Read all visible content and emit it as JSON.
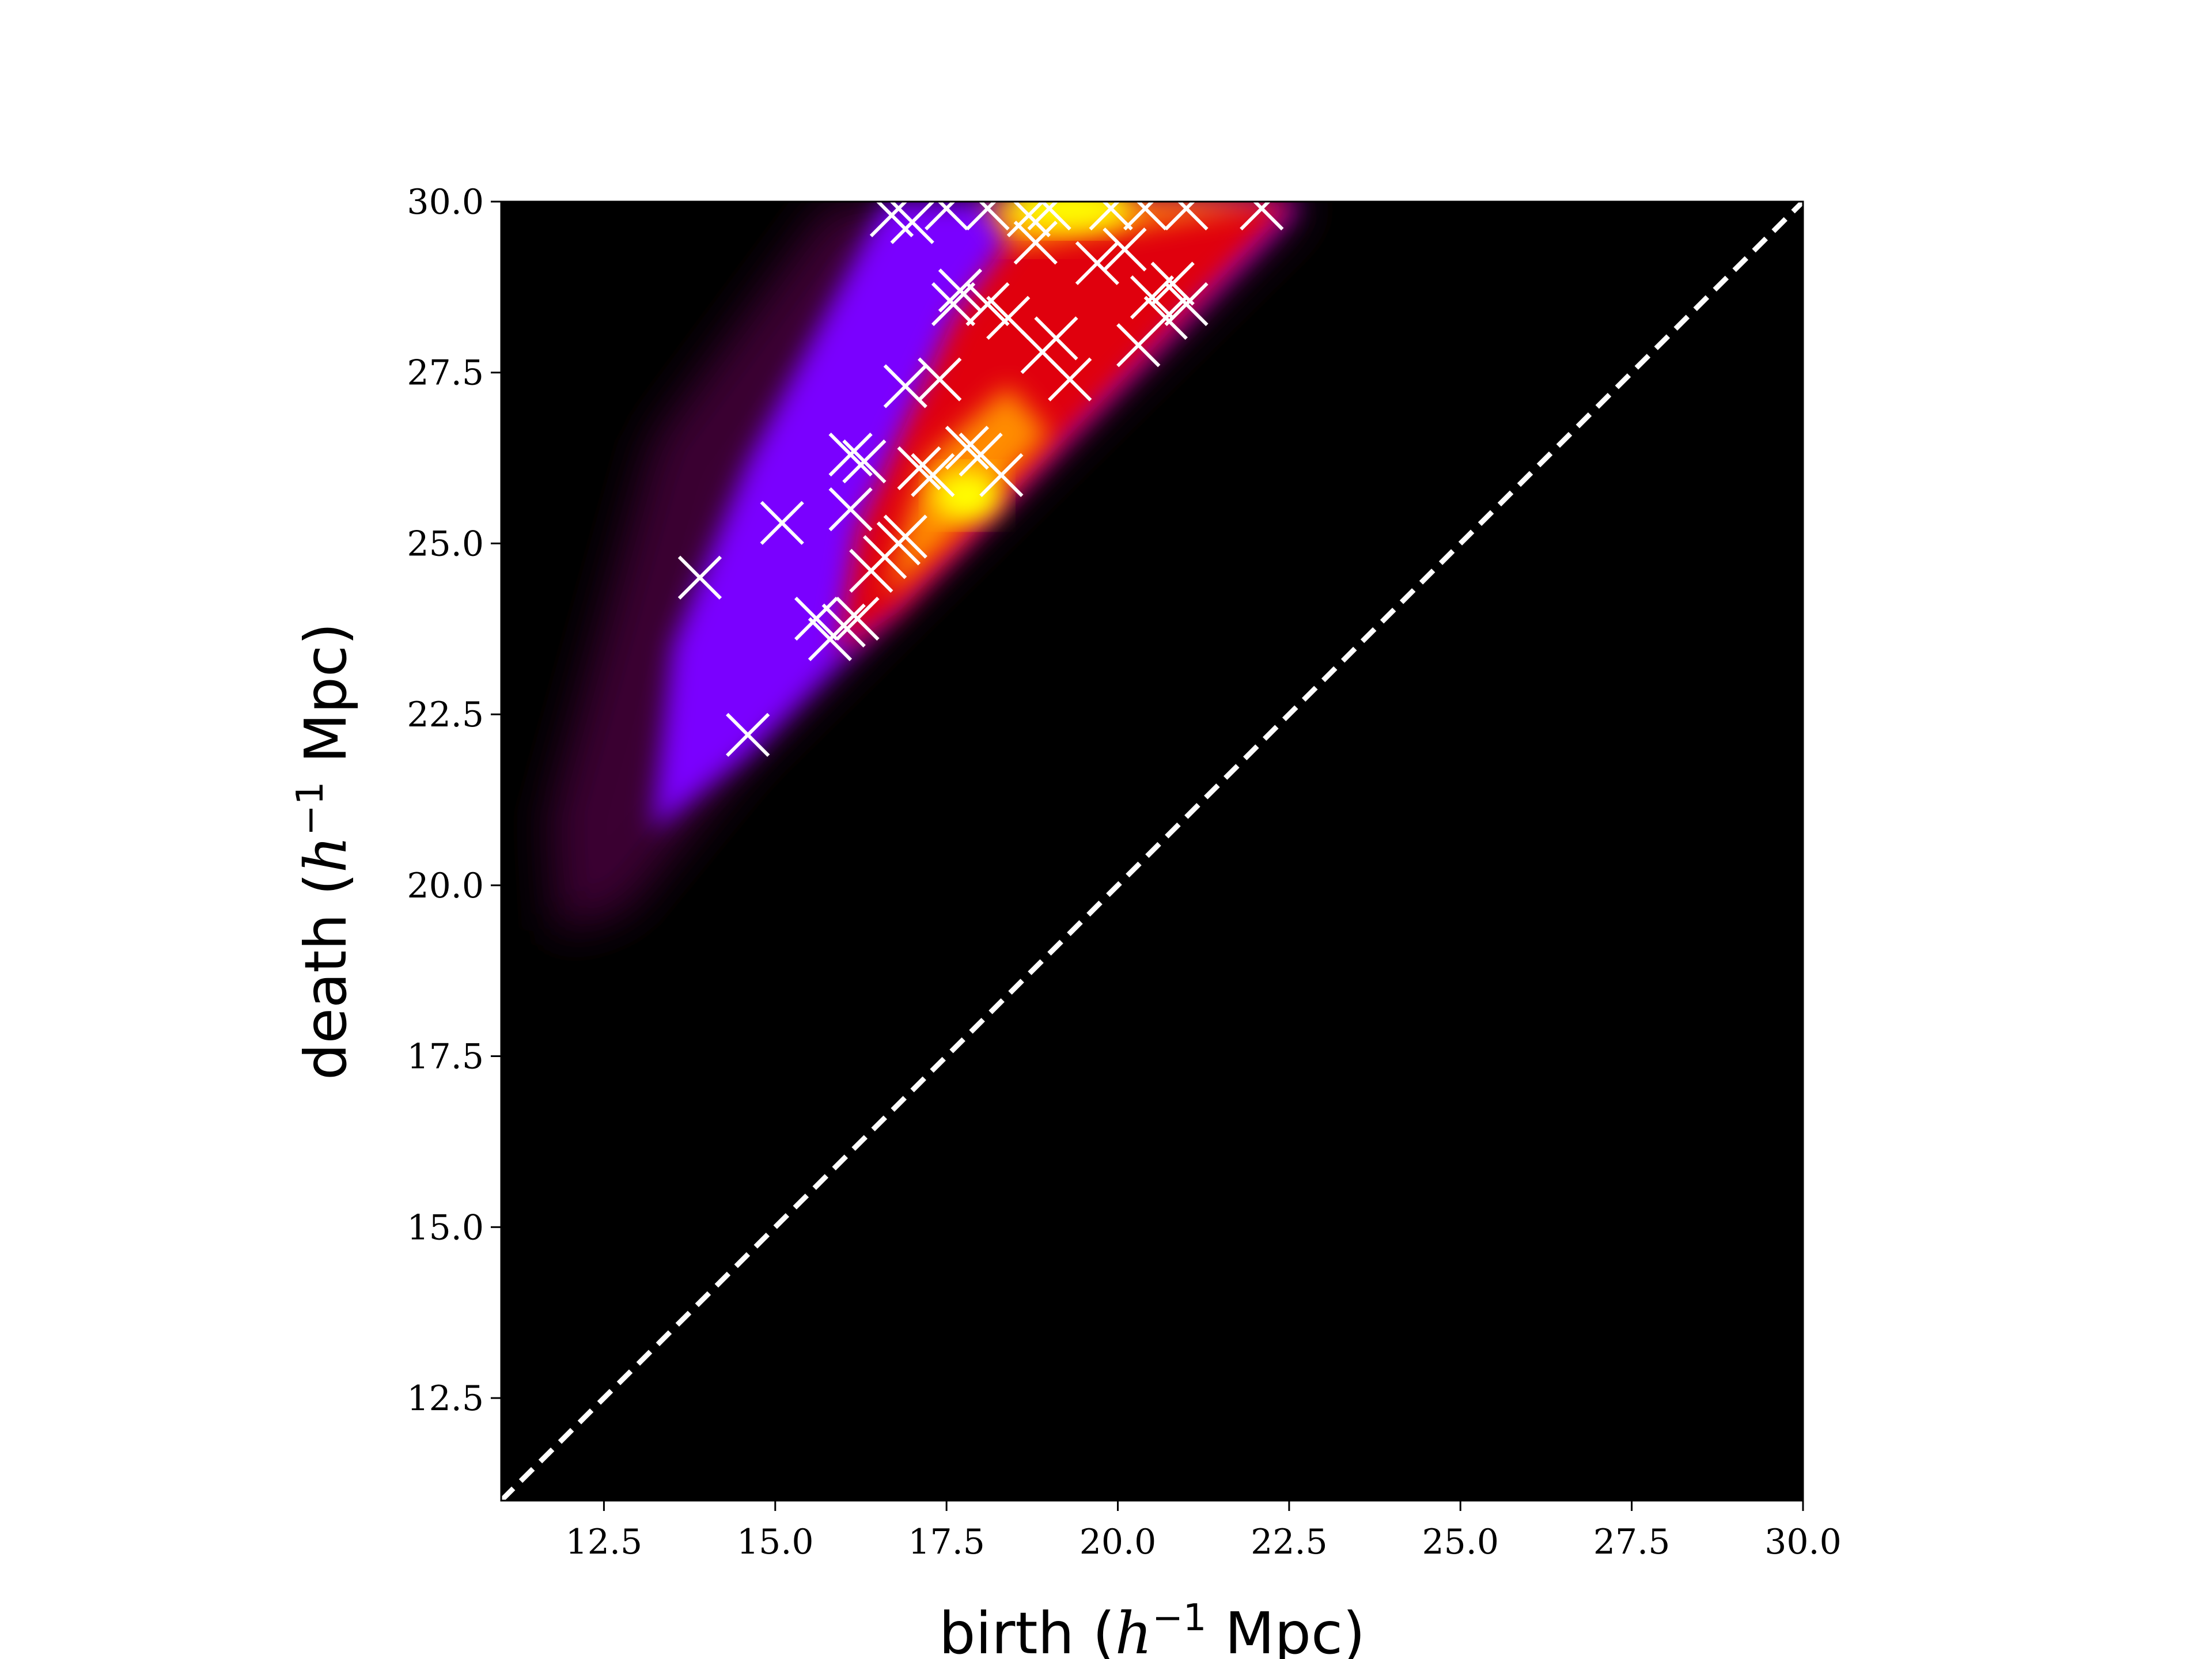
{
  "chart_data": {
    "type": "scatter",
    "background": "density heatmap (gnuplot-like colormap: black, purple, red, orange, yellow)",
    "xlabel": {
      "prefix": "birth (",
      "italic": "h",
      "sup": "−1",
      "suffix": " Mpc)"
    },
    "ylabel": {
      "prefix": "death (",
      "italic": "h",
      "sup": "−1",
      "suffix": " Mpc)"
    },
    "xlim": [
      11.0,
      30.0
    ],
    "ylim": [
      11.0,
      30.0
    ],
    "xticks": [
      "12.5",
      "15.0",
      "17.5",
      "20.0",
      "22.5",
      "25.0",
      "27.5",
      "30.0"
    ],
    "yticks": [
      "12.5",
      "15.0",
      "17.5",
      "20.0",
      "22.5",
      "25.0",
      "27.5",
      "30.0"
    ],
    "xtick_values": [
      12.5,
      15.0,
      17.5,
      20.0,
      22.5,
      25.0,
      27.5,
      30.0
    ],
    "ytick_values": [
      12.5,
      15.0,
      17.5,
      20.0,
      22.5,
      25.0,
      27.5,
      30.0
    ],
    "diagonal": {
      "style": "dashed",
      "color": "#ffffff",
      "from": [
        11.0,
        11.0
      ],
      "to": [
        30.0,
        30.0
      ]
    },
    "marker": {
      "shape": "x",
      "color": "#ffffff"
    },
    "colors": {
      "purple": "#7a00ff",
      "red": "#e0000a",
      "orange": "#ff8c00",
      "yellow": "#ffff00",
      "background": "#000000"
    },
    "points": [
      [
        13.9,
        24.5
      ],
      [
        14.6,
        22.2
      ],
      [
        15.1,
        25.3
      ],
      [
        15.6,
        23.9
      ],
      [
        15.8,
        23.6
      ],
      [
        16.0,
        23.8
      ],
      [
        16.2,
        23.9
      ],
      [
        16.1,
        25.5
      ],
      [
        16.1,
        26.3
      ],
      [
        16.3,
        26.2
      ],
      [
        16.4,
        24.6
      ],
      [
        16.6,
        24.8
      ],
      [
        16.8,
        25.0
      ],
      [
        16.9,
        25.1
      ],
      [
        17.1,
        26.1
      ],
      [
        17.3,
        26.0
      ],
      [
        16.9,
        27.3
      ],
      [
        17.4,
        27.4
      ],
      [
        17.6,
        28.5
      ],
      [
        17.7,
        28.7
      ],
      [
        17.8,
        26.4
      ],
      [
        18.0,
        26.3
      ],
      [
        18.3,
        26.0
      ],
      [
        18.1,
        28.5
      ],
      [
        18.4,
        28.3
      ],
      [
        18.9,
        27.8
      ],
      [
        19.1,
        28.0
      ],
      [
        19.3,
        27.4
      ],
      [
        18.8,
        29.4
      ],
      [
        19.7,
        29.1
      ],
      [
        20.1,
        29.3
      ],
      [
        20.3,
        27.9
      ],
      [
        20.5,
        28.6
      ],
      [
        20.7,
        28.3
      ],
      [
        20.8,
        28.8
      ],
      [
        21.0,
        28.5
      ],
      [
        16.7,
        29.8
      ],
      [
        17.0,
        29.7
      ],
      [
        17.5,
        29.9
      ],
      [
        18.1,
        29.9
      ],
      [
        18.7,
        29.8
      ],
      [
        19.0,
        29.9
      ],
      [
        19.9,
        29.9
      ],
      [
        20.4,
        29.9
      ],
      [
        21.0,
        29.9
      ],
      [
        22.1,
        29.9
      ]
    ]
  }
}
